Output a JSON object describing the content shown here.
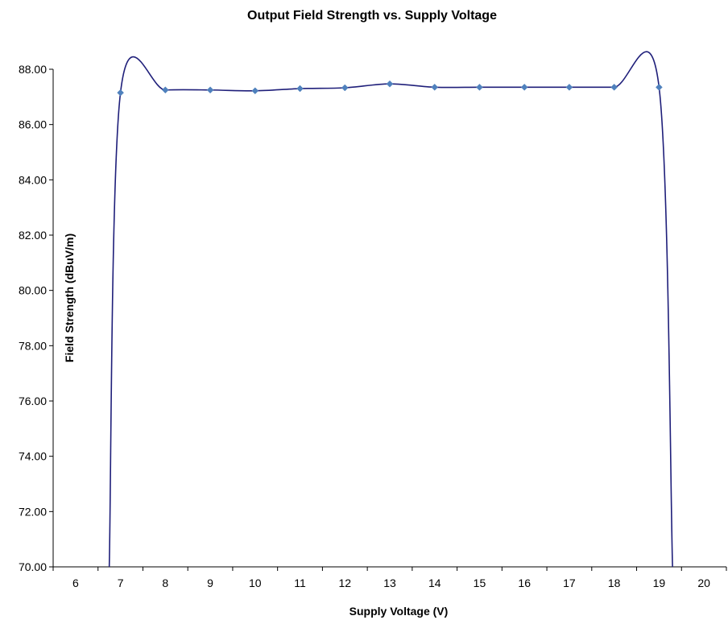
{
  "chart_data": {
    "type": "line",
    "title": "Output Field Strength vs. Supply Voltage",
    "xlabel": "Supply Voltage (V)",
    "ylabel": "Field Strength (dBuV/m)",
    "x_categories": [
      "6",
      "7",
      "8",
      "9",
      "10",
      "11",
      "12",
      "13",
      "14",
      "15",
      "16",
      "17",
      "18",
      "19",
      "20"
    ],
    "ylim": [
      70,
      88
    ],
    "yticks": [
      "70.00",
      "72.00",
      "74.00",
      "76.00",
      "78.00",
      "80.00",
      "82.00",
      "84.00",
      "86.00",
      "88.00"
    ],
    "grid": false,
    "legend": "none",
    "series": [
      {
        "marker": "diamond",
        "points": [
          {
            "x": 6.75,
            "y": 70.0,
            "marker": false
          },
          {
            "x": 7,
            "y": 87.15,
            "marker": true
          },
          {
            "x": 8,
            "y": 87.25,
            "marker": true
          },
          {
            "x": 9,
            "y": 87.25,
            "marker": true
          },
          {
            "x": 10,
            "y": 87.22,
            "marker": true
          },
          {
            "x": 11,
            "y": 87.3,
            "marker": true
          },
          {
            "x": 12,
            "y": 87.33,
            "marker": true
          },
          {
            "x": 13,
            "y": 87.47,
            "marker": true
          },
          {
            "x": 14,
            "y": 87.35,
            "marker": true
          },
          {
            "x": 15,
            "y": 87.35,
            "marker": true
          },
          {
            "x": 16,
            "y": 87.35,
            "marker": true
          },
          {
            "x": 17,
            "y": 87.35,
            "marker": true
          },
          {
            "x": 18,
            "y": 87.35,
            "marker": true
          },
          {
            "x": 19,
            "y": 87.35,
            "marker": true
          },
          {
            "x": 19.3,
            "y": 70.0,
            "marker": false
          }
        ]
      }
    ],
    "colors": {
      "line": "#1f1f7a",
      "marker": "#4f81bd",
      "axis": "#000000"
    }
  }
}
